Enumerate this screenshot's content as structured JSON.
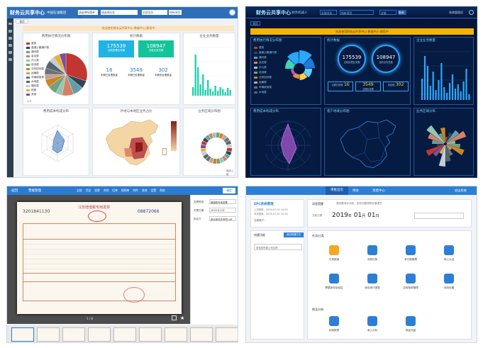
{
  "q1": {
    "app_title": "财务云共享中心",
    "subtitle": "中国石油集团",
    "filters": [
      "请选择所属单位",
      "请选择业务",
      "全部业务",
      "所有项目"
    ],
    "tab": "首页",
    "notice": "欢迎使用财务云共享中心·数据中心·建设中",
    "panels": {
      "left_title": "费用执行情况分布图",
      "stats_title": "统计数据",
      "right_title": "企业业务数量",
      "radar_title": "费用成本构成分布",
      "map_title": "外地与本地区业务占比",
      "donut_title": "业务区域分布图"
    },
    "stats": {
      "big1": "175539",
      "big1_label": "当前处理业务数",
      "big2": "108947",
      "big2_label": "当前业务总数",
      "n1": "16",
      "n1_label": "本期已处理数量",
      "n2": "3549",
      "n2_label": "本期已处理数量",
      "n3": "302",
      "n3_label": "本期未处理数量"
    },
    "legend": [
      "差旅",
      "高速公路通行费",
      "通讯费",
      "会议费",
      "办公费",
      "培训费",
      "业务招待费",
      "运输费",
      "车辆使用费",
      "水电费",
      "福利费",
      "税费",
      "其他"
    ],
    "pager": "1/3",
    "footer": "返回上级"
  },
  "q2": {
    "app_title": "财务云共享中心",
    "subtitle": "财务机器人",
    "filters": [
      "全部业务",
      "所有项目",
      "全部",
      "查询"
    ],
    "user": "系统管理员",
    "tab": "首页",
    "notice": "欢迎使用财务云共享中心·数据中心·建设中",
    "panels": {
      "p1": "费用执行情况分布图",
      "p2": "统计数据",
      "p3": "企业业务数量",
      "p4": "费用成本构成分布",
      "p5": "客户地域分布图",
      "p6": "业务区域分布"
    },
    "stats": {
      "big1": "175539",
      "big1_label": "当前处理业务数",
      "big2": "108947",
      "big2_label": "当前业务总数",
      "n1": "16",
      "n2": "3549",
      "n3": "302",
      "n_labels": [
        "当期已处理",
        "当期业务数",
        "未处理"
      ]
    }
  },
  "q3": {
    "title": "票据管理",
    "back": "返回",
    "menu": [
      "全部",
      "凭证",
      "发票",
      "合同",
      "回单",
      "报销单",
      "附件",
      "其他",
      "设置",
      "帮助"
    ],
    "confirm": "确定",
    "invoice_header": "江苏增值税专用发票",
    "invoice_code": "3201841130",
    "invoice_no": "08872066",
    "right_labels": [
      "发票类型",
      "开票日期",
      "购买方"
    ],
    "right_values": [
      "增值税专用发票",
      "2019-01-02",
      "南京某科技有限公司"
    ],
    "page_dots": "1 / 8"
  },
  "q4": {
    "tabs": [
      "审批首页",
      "待办",
      "消息中心"
    ],
    "exit": "退出系统",
    "profile_title": "EPC系统管理",
    "login_lines": [
      "上次登录：2019-07-02 10:09",
      "本次登录：2019-07-02 10:26"
    ],
    "account_label": "当前账户：",
    "notice_title": "消息提醒",
    "notice_text": "请查看待办消息，如有问题请联系管理员",
    "date_label": "当前日期",
    "date_year": "2019",
    "year_unit": "年",
    "date_month": "01",
    "month_unit": "月",
    "date_day": "01",
    "day_unit": "日",
    "section1": "快捷功能",
    "section1_btn": "添加快捷方式",
    "select_label": "请选择所属公司名称",
    "grid_title": "任务分类",
    "tasks": [
      "日常报销",
      "对账付款",
      "收付款管理",
      "网上认证",
      "票据库存及验证",
      "综合统计报表",
      "应收账款管理",
      "系统设置"
    ],
    "section2": "报告分析",
    "reports": [
      "利润报表",
      "收入分析",
      "现金流量"
    ]
  }
}
